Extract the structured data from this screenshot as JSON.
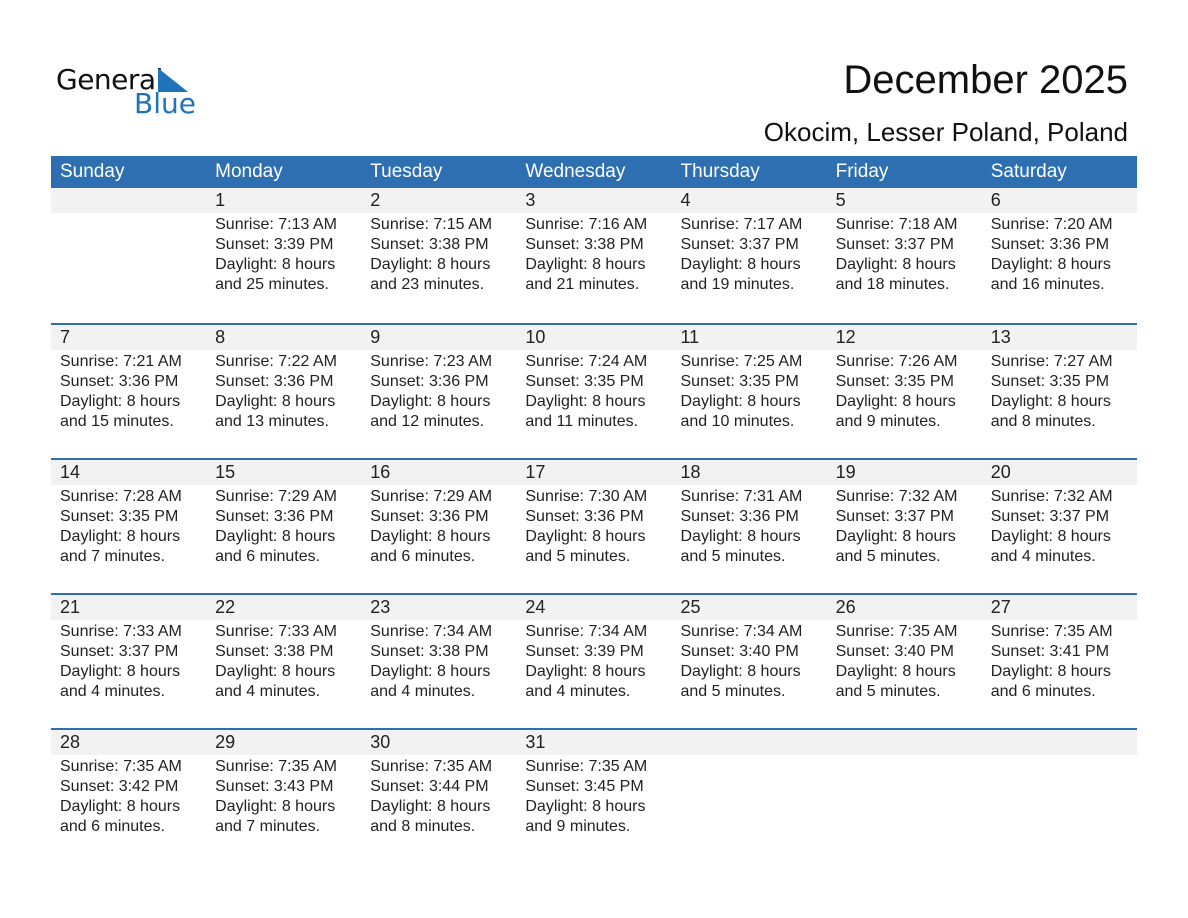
{
  "logo": {
    "line1": "General",
    "line2": "Blue",
    "color": "#1f73bb"
  },
  "title": "December 2025",
  "subtitle": "Okocim, Lesser Poland, Poland",
  "header_color": "#2e6fb2",
  "days": [
    "Sunday",
    "Monday",
    "Tuesday",
    "Wednesday",
    "Thursday",
    "Friday",
    "Saturday"
  ],
  "weeks": [
    [
      null,
      {
        "day": "1",
        "sunrise": "Sunrise: 7:13 AM",
        "sunset": "Sunset: 3:39 PM",
        "daylight": "Daylight: 8 hours",
        "minutes": "and 25 minutes."
      },
      {
        "day": "2",
        "sunrise": "Sunrise: 7:15 AM",
        "sunset": "Sunset: 3:38 PM",
        "daylight": "Daylight: 8 hours",
        "minutes": "and 23 minutes."
      },
      {
        "day": "3",
        "sunrise": "Sunrise: 7:16 AM",
        "sunset": "Sunset: 3:38 PM",
        "daylight": "Daylight: 8 hours",
        "minutes": "and 21 minutes."
      },
      {
        "day": "4",
        "sunrise": "Sunrise: 7:17 AM",
        "sunset": "Sunset: 3:37 PM",
        "daylight": "Daylight: 8 hours",
        "minutes": "and 19 minutes."
      },
      {
        "day": "5",
        "sunrise": "Sunrise: 7:18 AM",
        "sunset": "Sunset: 3:37 PM",
        "daylight": "Daylight: 8 hours",
        "minutes": "and 18 minutes."
      },
      {
        "day": "6",
        "sunrise": "Sunrise: 7:20 AM",
        "sunset": "Sunset: 3:36 PM",
        "daylight": "Daylight: 8 hours",
        "minutes": "and 16 minutes."
      }
    ],
    [
      {
        "day": "7",
        "sunrise": "Sunrise: 7:21 AM",
        "sunset": "Sunset: 3:36 PM",
        "daylight": "Daylight: 8 hours",
        "minutes": "and 15 minutes."
      },
      {
        "day": "8",
        "sunrise": "Sunrise: 7:22 AM",
        "sunset": "Sunset: 3:36 PM",
        "daylight": "Daylight: 8 hours",
        "minutes": "and 13 minutes."
      },
      {
        "day": "9",
        "sunrise": "Sunrise: 7:23 AM",
        "sunset": "Sunset: 3:36 PM",
        "daylight": "Daylight: 8 hours",
        "minutes": "and 12 minutes."
      },
      {
        "day": "10",
        "sunrise": "Sunrise: 7:24 AM",
        "sunset": "Sunset: 3:35 PM",
        "daylight": "Daylight: 8 hours",
        "minutes": "and 11 minutes."
      },
      {
        "day": "11",
        "sunrise": "Sunrise: 7:25 AM",
        "sunset": "Sunset: 3:35 PM",
        "daylight": "Daylight: 8 hours",
        "minutes": "and 10 minutes."
      },
      {
        "day": "12",
        "sunrise": "Sunrise: 7:26 AM",
        "sunset": "Sunset: 3:35 PM",
        "daylight": "Daylight: 8 hours",
        "minutes": "and 9 minutes."
      },
      {
        "day": "13",
        "sunrise": "Sunrise: 7:27 AM",
        "sunset": "Sunset: 3:35 PM",
        "daylight": "Daylight: 8 hours",
        "minutes": "and 8 minutes."
      }
    ],
    [
      {
        "day": "14",
        "sunrise": "Sunrise: 7:28 AM",
        "sunset": "Sunset: 3:35 PM",
        "daylight": "Daylight: 8 hours",
        "minutes": "and 7 minutes."
      },
      {
        "day": "15",
        "sunrise": "Sunrise: 7:29 AM",
        "sunset": "Sunset: 3:36 PM",
        "daylight": "Daylight: 8 hours",
        "minutes": "and 6 minutes."
      },
      {
        "day": "16",
        "sunrise": "Sunrise: 7:29 AM",
        "sunset": "Sunset: 3:36 PM",
        "daylight": "Daylight: 8 hours",
        "minutes": "and 6 minutes."
      },
      {
        "day": "17",
        "sunrise": "Sunrise: 7:30 AM",
        "sunset": "Sunset: 3:36 PM",
        "daylight": "Daylight: 8 hours",
        "minutes": "and 5 minutes."
      },
      {
        "day": "18",
        "sunrise": "Sunrise: 7:31 AM",
        "sunset": "Sunset: 3:36 PM",
        "daylight": "Daylight: 8 hours",
        "minutes": "and 5 minutes."
      },
      {
        "day": "19",
        "sunrise": "Sunrise: 7:32 AM",
        "sunset": "Sunset: 3:37 PM",
        "daylight": "Daylight: 8 hours",
        "minutes": "and 5 minutes."
      },
      {
        "day": "20",
        "sunrise": "Sunrise: 7:32 AM",
        "sunset": "Sunset: 3:37 PM",
        "daylight": "Daylight: 8 hours",
        "minutes": "and 4 minutes."
      }
    ],
    [
      {
        "day": "21",
        "sunrise": "Sunrise: 7:33 AM",
        "sunset": "Sunset: 3:37 PM",
        "daylight": "Daylight: 8 hours",
        "minutes": "and 4 minutes."
      },
      {
        "day": "22",
        "sunrise": "Sunrise: 7:33 AM",
        "sunset": "Sunset: 3:38 PM",
        "daylight": "Daylight: 8 hours",
        "minutes": "and 4 minutes."
      },
      {
        "day": "23",
        "sunrise": "Sunrise: 7:34 AM",
        "sunset": "Sunset: 3:38 PM",
        "daylight": "Daylight: 8 hours",
        "minutes": "and 4 minutes."
      },
      {
        "day": "24",
        "sunrise": "Sunrise: 7:34 AM",
        "sunset": "Sunset: 3:39 PM",
        "daylight": "Daylight: 8 hours",
        "minutes": "and 4 minutes."
      },
      {
        "day": "25",
        "sunrise": "Sunrise: 7:34 AM",
        "sunset": "Sunset: 3:40 PM",
        "daylight": "Daylight: 8 hours",
        "minutes": "and 5 minutes."
      },
      {
        "day": "26",
        "sunrise": "Sunrise: 7:35 AM",
        "sunset": "Sunset: 3:40 PM",
        "daylight": "Daylight: 8 hours",
        "minutes": "and 5 minutes."
      },
      {
        "day": "27",
        "sunrise": "Sunrise: 7:35 AM",
        "sunset": "Sunset: 3:41 PM",
        "daylight": "Daylight: 8 hours",
        "minutes": "and 6 minutes."
      }
    ],
    [
      {
        "day": "28",
        "sunrise": "Sunrise: 7:35 AM",
        "sunset": "Sunset: 3:42 PM",
        "daylight": "Daylight: 8 hours",
        "minutes": "and 6 minutes."
      },
      {
        "day": "29",
        "sunrise": "Sunrise: 7:35 AM",
        "sunset": "Sunset: 3:43 PM",
        "daylight": "Daylight: 8 hours",
        "minutes": "and 7 minutes."
      },
      {
        "day": "30",
        "sunrise": "Sunrise: 7:35 AM",
        "sunset": "Sunset: 3:44 PM",
        "daylight": "Daylight: 8 hours",
        "minutes": "and 8 minutes."
      },
      {
        "day": "31",
        "sunrise": "Sunrise: 7:35 AM",
        "sunset": "Sunset: 3:45 PM",
        "daylight": "Daylight: 8 hours",
        "minutes": "and 9 minutes."
      },
      null,
      null,
      null
    ]
  ]
}
